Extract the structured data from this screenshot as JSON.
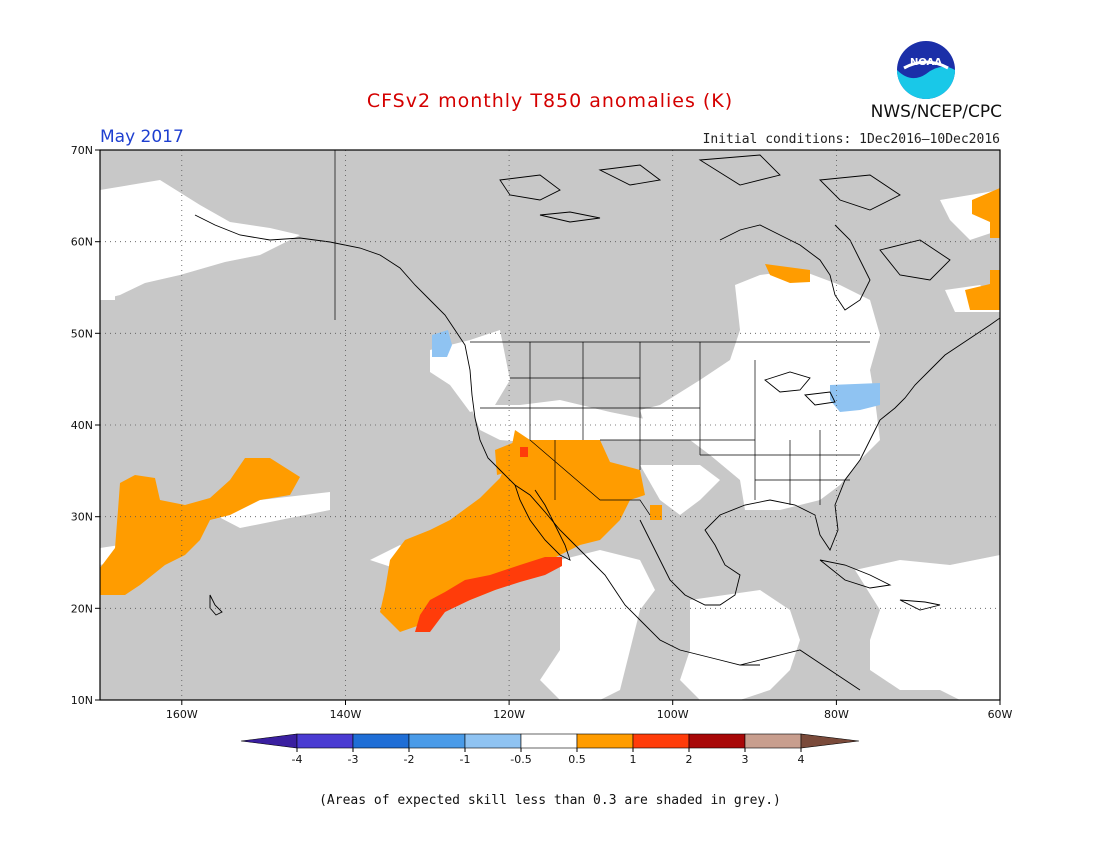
{
  "title": "CFSv2 monthly T850 anomalies (K)",
  "month": "May 2017",
  "initial_conditions": "Initial conditions: 1Dec2016–10Dec2016",
  "agency": "NWS/NCEP/CPC",
  "logo_text": "NOAA",
  "footnote": "(Areas of expected skill less than 0.3 are shaded in grey.)",
  "map": {
    "lon_range": [
      -170,
      -60
    ],
    "lat_range": [
      10,
      70
    ],
    "lon_ticks": [
      "160W",
      "140W",
      "120W",
      "100W",
      "80W",
      "60W"
    ],
    "lat_ticks": [
      "10N",
      "20N",
      "30N",
      "40N",
      "50N",
      "60N",
      "70N"
    ]
  },
  "colorbar": {
    "ticks": [
      "-4",
      "-3",
      "-2",
      "-1",
      "-0.5",
      "0.5",
      "1",
      "2",
      "3",
      "4"
    ],
    "colors": [
      "#3a1fa0",
      "#4a3bd2",
      "#1f6ed6",
      "#4a9be8",
      "#8fc3f2",
      "#ffffff",
      "#ff9c00",
      "#ff3c0a",
      "#a80808",
      "#c89e8e",
      "#7a4a3a"
    ]
  },
  "colors": {
    "grey_skill": "#c8c8c8",
    "warm_0_5_1": "#ff9c00",
    "warm_1_2": "#ff3c0a",
    "cool_0_5_1": "#8fc3f2"
  }
}
